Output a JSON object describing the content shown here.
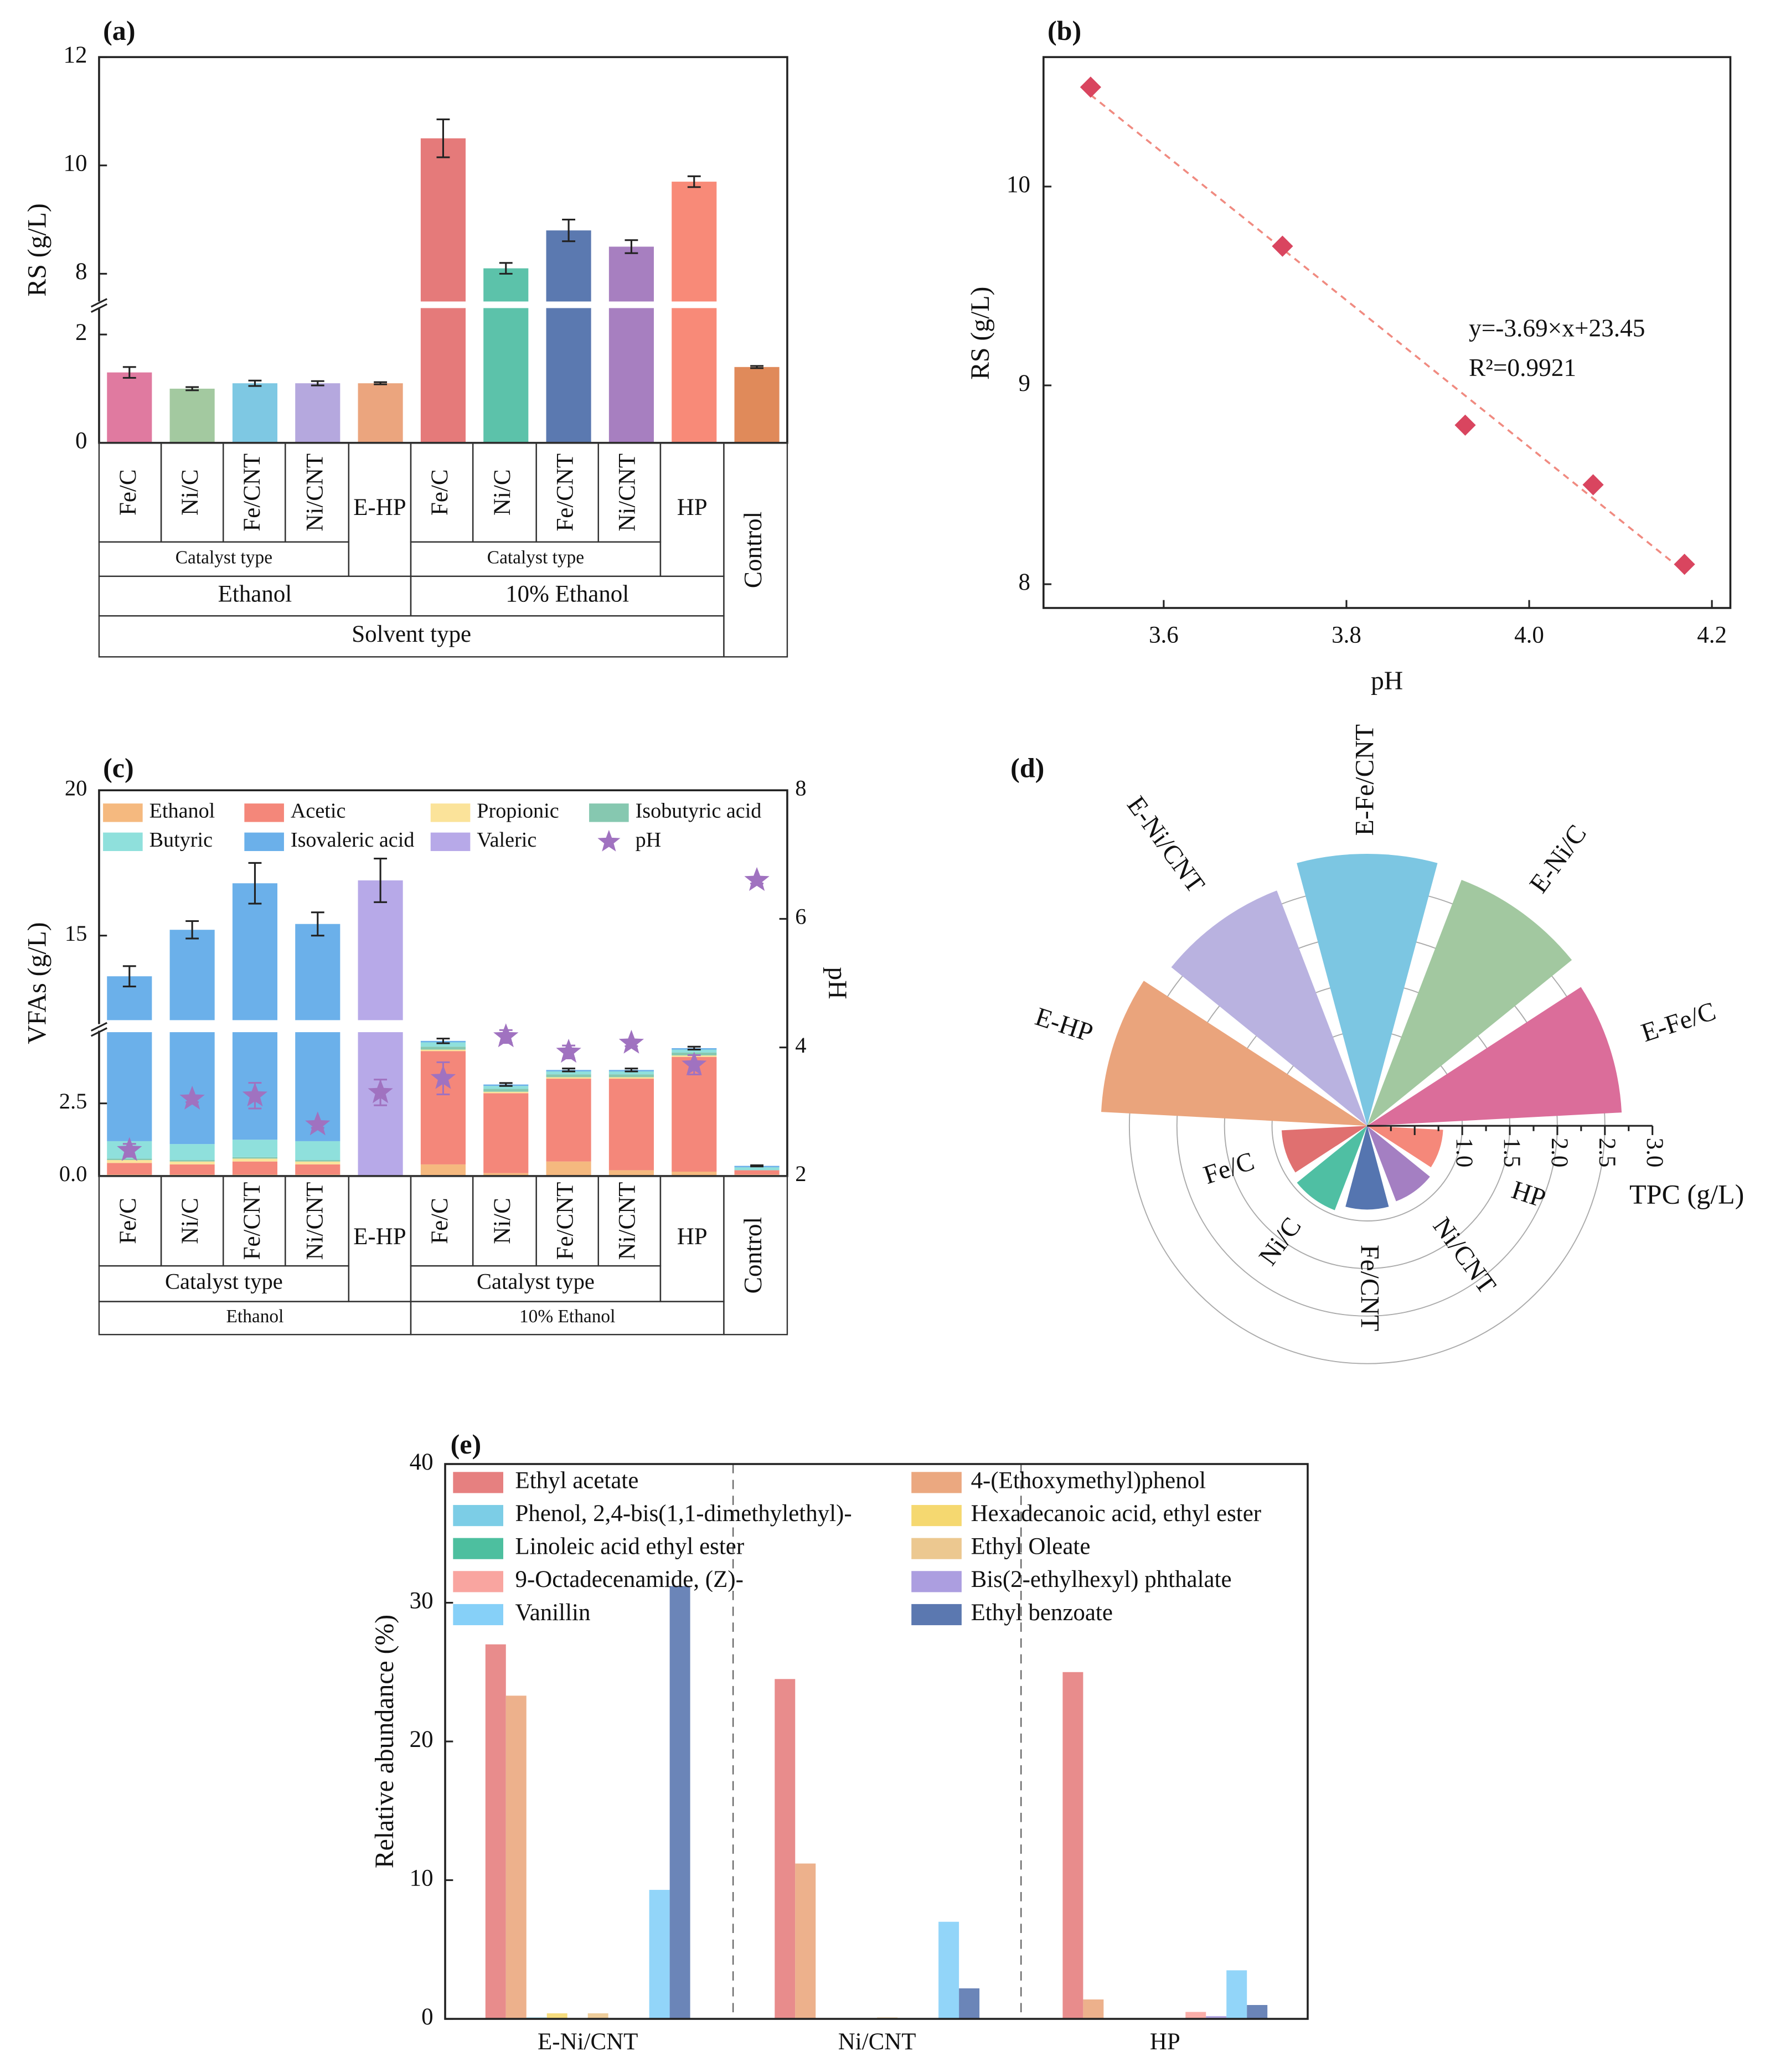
{
  "chart_data": [
    {
      "panel": "(a)",
      "type": "bar",
      "ylabel": "RS (g/L)",
      "y_axis_break": [
        2.5,
        7.45
      ],
      "ylim": [
        0,
        12
      ],
      "ytick_labels": [
        "0",
        "2",
        "8",
        "10",
        "12"
      ],
      "ytick_values": [
        0,
        2,
        8,
        10,
        12
      ],
      "categories": [
        "Fe/C",
        "Ni/C",
        "Fe/CNT",
        "Ni/CNT",
        "E-HP",
        "Fe/C",
        "Ni/C",
        "Fe/CNT",
        "Ni/CNT",
        "HP",
        "Control"
      ],
      "values": [
        1.3,
        1.0,
        1.1,
        1.1,
        1.1,
        10.5,
        8.1,
        8.8,
        8.5,
        9.7,
        1.4
      ],
      "errors": [
        0.1,
        0.03,
        0.05,
        0.04,
        0.02,
        0.35,
        0.1,
        0.2,
        0.12,
        0.1,
        0.02
      ],
      "colors": [
        "#e07aa0",
        "#a3c9a0",
        "#7ec8e3",
        "#b5a8de",
        "#eba57e",
        "#e57a7a",
        "#5cc2aa",
        "#5b79b0",
        "#a77fc0",
        "#f88a78",
        "#e08a5a"
      ],
      "x_groups": {
        "catalyst_label": "Catalyst type",
        "solvents": [
          "Ethanol",
          "10% Ethanol"
        ],
        "solvent_label": "Solvent type"
      }
    },
    {
      "panel": "(b)",
      "type": "scatter",
      "xlabel": "pH",
      "ylabel": "RS (g/L)",
      "xlim": [
        3.47,
        4.22
      ],
      "ylim": [
        7.88,
        10.65
      ],
      "xtick_labels": [
        "3.6",
        "3.8",
        "4.0",
        "4.2"
      ],
      "xtick_values": [
        3.6,
        3.8,
        4.0,
        4.2
      ],
      "ytick_labels": [
        "8",
        "9",
        "10"
      ],
      "ytick_values": [
        8,
        9,
        10
      ],
      "x": [
        3.52,
        3.73,
        3.93,
        4.07,
        4.17
      ],
      "y": [
        10.5,
        9.7,
        8.8,
        8.5,
        8.1
      ],
      "fit": {
        "slope": -3.69,
        "intercept": 23.45
      },
      "equation": "y=-3.69×x+23.45",
      "r2_label": "R²=0.9921",
      "point_color": "#d9455f",
      "line_color": "#f08a80"
    },
    {
      "panel": "(c)",
      "type": "bar",
      "stacked": true,
      "ylabel": "VFAs (g/L)",
      "ylabel_right": "pH",
      "y_axis_break": [
        4.95,
        12
      ],
      "ylim": [
        0,
        20
      ],
      "ylim_right": [
        2,
        8
      ],
      "ytick_labels": [
        "0.0",
        "2.5",
        "15",
        "20"
      ],
      "ytick_values": [
        0,
        2.5,
        15,
        20
      ],
      "ytick_labels_right": [
        "2",
        "4",
        "6",
        "8"
      ],
      "ytick_values_right": [
        2,
        4,
        6,
        8
      ],
      "categories": [
        "Fe/C",
        "Ni/C",
        "Fe/CNT",
        "Ni/CNT",
        "E-HP",
        "Fe/C",
        "Ni/C",
        "Fe/CNT",
        "Ni/CNT",
        "HP",
        "Control"
      ],
      "series": [
        {
          "name": "Ethanol",
          "color": "#f5b97f",
          "values": [
            0.05,
            0.05,
            0.05,
            0.05,
            0,
            0.4,
            0.1,
            0.5,
            0.2,
            0.15,
            0.05
          ]
        },
        {
          "name": "Acetic",
          "color": "#f4877a",
          "values": [
            0.4,
            0.35,
            0.45,
            0.35,
            0,
            3.9,
            2.75,
            2.85,
            3.15,
            3.95,
            0.15
          ]
        },
        {
          "name": "Propionic",
          "color": "#fbe39a",
          "values": [
            0.1,
            0.1,
            0.1,
            0.1,
            0,
            0.05,
            0.05,
            0.05,
            0.05,
            0.05,
            0
          ]
        },
        {
          "name": "Isobutyric acid",
          "color": "#86c8b0",
          "values": [
            0.05,
            0.05,
            0.05,
            0.05,
            0,
            0.1,
            0.1,
            0.1,
            0.1,
            0.1,
            0
          ]
        },
        {
          "name": "Butyric",
          "color": "#8fe0dc",
          "values": [
            0.6,
            0.55,
            0.6,
            0.65,
            0,
            0.15,
            0.1,
            0.1,
            0.1,
            0.1,
            0.1
          ]
        },
        {
          "name": "Isovaleric acid",
          "color": "#6bb0ea",
          "values": [
            12.4,
            14.1,
            15.55,
            14.2,
            0,
            0.05,
            0.05,
            0.05,
            0.05,
            0.05,
            0.05
          ]
        },
        {
          "name": "Valeric",
          "color": "#b7a9e8",
          "values": [
            0,
            0,
            0,
            0,
            16.9,
            0,
            0,
            0,
            0,
            0,
            0
          ]
        }
      ],
      "total_errors": [
        0.35,
        0.3,
        0.7,
        0.4,
        0.75,
        0.08,
        0.05,
        0.05,
        0.05,
        0.05,
        0.02
      ],
      "ph": {
        "name": "pH",
        "color": "#a072c0",
        "values": [
          2.4,
          3.2,
          3.25,
          2.8,
          3.3,
          3.52,
          4.17,
          3.93,
          4.07,
          3.73,
          6.6
        ],
        "errors": [
          0.1,
          0.05,
          0.2,
          0.05,
          0.2,
          0.25,
          0.1,
          0.1,
          0.05,
          0.15,
          0.05
        ]
      },
      "legend_position": "top",
      "x_groups": {
        "catalyst_label": "Catalyst type",
        "solvents": [
          "Ethanol",
          "10% Ethanol"
        ]
      }
    },
    {
      "panel": "(d)",
      "type": "bar",
      "polar": true,
      "rlabel": "TPC (g/L)",
      "rlim": [
        0,
        3.0
      ],
      "rtick_labels": [
        "1.0",
        "1.5",
        "2.0",
        "2.5",
        "3.0"
      ],
      "rtick_values": [
        1.0,
        1.5,
        2.0,
        2.5,
        3.0
      ],
      "categories": [
        "E-Fe/C",
        "E-Ni/C",
        "E-Fe/CNT",
        "E-Ni/CNT",
        "E-HP",
        "Fe/C",
        "Ni/C",
        "Fe/CNT",
        "Ni/CNT",
        "HP"
      ],
      "values": [
        2.68,
        2.77,
        2.86,
        2.65,
        2.8,
        0.9,
        0.95,
        0.88,
        0.85,
        0.8
      ],
      "colors": [
        "#db6d9a",
        "#a2c8a0",
        "#7cc6e2",
        "#b9b2e0",
        "#eaa47c",
        "#e07070",
        "#4fbfa3",
        "#5575b0",
        "#a47fc2",
        "#f5887a"
      ]
    },
    {
      "panel": "(e)",
      "type": "bar",
      "ylabel": "Relative abundance (%)",
      "ylim": [
        0,
        40
      ],
      "ytick_labels": [
        "0",
        "10",
        "20",
        "30",
        "40"
      ],
      "ytick_values": [
        0,
        10,
        20,
        30,
        40
      ],
      "categories": [
        "E-Ni/CNT",
        "Ni/CNT",
        "HP"
      ],
      "series": [
        {
          "name": "Ethyl acetate",
          "color": "#e68080",
          "values": [
            27,
            24.5,
            25
          ]
        },
        {
          "name": "4-(Ethoxymethyl)phenol",
          "color": "#eba880",
          "values": [
            23.3,
            11.2,
            1.4
          ]
        },
        {
          "name": "Phenol, 2,4-bis(1,1-dimethylethyl)-",
          "color": "#7ccde6",
          "values": [
            0.1,
            0,
            0
          ]
        },
        {
          "name": "Hexadecanoic acid, ethyl ester",
          "color": "#f5d870",
          "values": [
            0.4,
            0,
            0
          ]
        },
        {
          "name": "Linoleic acid ethyl ester",
          "color": "#4dbf9f",
          "values": [
            0.05,
            0,
            0
          ]
        },
        {
          "name": "Ethyl Oleate",
          "color": "#ecc890",
          "values": [
            0.4,
            0.1,
            0
          ]
        },
        {
          "name": "9-Octadecenamide, (Z)-",
          "color": "#f9a5a0",
          "values": [
            0,
            0,
            0.5
          ]
        },
        {
          "name": "Bis(2-ethylhexyl) phthalate",
          "color": "#ac9ee0",
          "values": [
            0,
            0,
            0.2
          ]
        },
        {
          "name": "Vanillin",
          "color": "#86d0f8",
          "values": [
            9.3,
            7.0,
            3.5
          ]
        },
        {
          "name": "Ethyl benzoate",
          "color": "#5b78b0",
          "values": [
            31.2,
            2.2,
            1.0
          ]
        }
      ],
      "legend_position": "top"
    }
  ]
}
